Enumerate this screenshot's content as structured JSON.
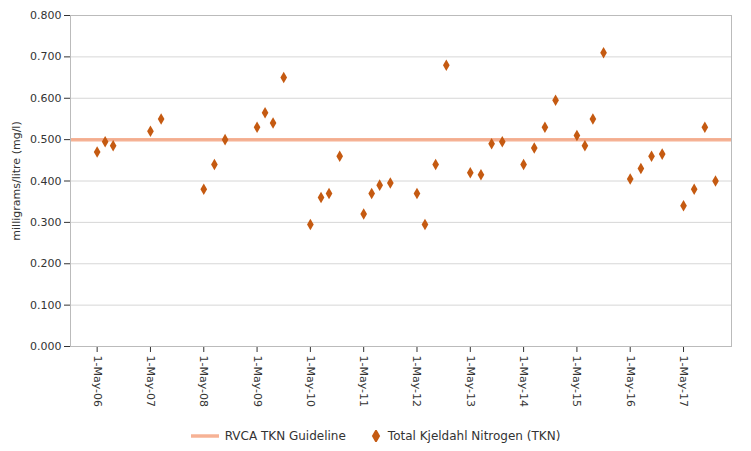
{
  "chart_data": {
    "type": "scatter",
    "ylabel": "milligrams/litre (mg/l)",
    "x": [
      2006.0,
      2006.15,
      2006.3,
      2007.0,
      2007.2,
      2008.0,
      2008.2,
      2008.4,
      2009.0,
      2009.15,
      2009.3,
      2009.5,
      2010.0,
      2010.2,
      2010.35,
      2010.55,
      2011.0,
      2011.15,
      2011.3,
      2011.5,
      2012.0,
      2012.15,
      2012.35,
      2012.55,
      2013.0,
      2013.2,
      2013.4,
      2013.6,
      2014.0,
      2014.2,
      2014.4,
      2014.6,
      2015.0,
      2015.15,
      2015.3,
      2015.5,
      2016.0,
      2016.2,
      2016.4,
      2016.6,
      2017.0,
      2017.2,
      2017.4,
      2017.6
    ],
    "guideline": {
      "name": "RVCA TKN Guideline",
      "value": 0.5,
      "color": "#F4A582"
    },
    "series": [
      {
        "name": "Total Kjeldahl Nitrogen (TKN)",
        "color": "#C55A11",
        "marker": "diamond",
        "values": [
          0.47,
          0.495,
          0.485,
          0.52,
          0.55,
          0.38,
          0.44,
          0.5,
          0.53,
          0.565,
          0.54,
          0.65,
          0.295,
          0.36,
          0.37,
          0.46,
          0.32,
          0.37,
          0.39,
          0.395,
          0.37,
          0.295,
          0.44,
          0.68,
          0.42,
          0.415,
          0.49,
          0.495,
          0.44,
          0.48,
          0.53,
          0.595,
          0.51,
          0.485,
          0.55,
          0.71,
          0.405,
          0.43,
          0.46,
          0.465,
          0.34,
          0.38,
          0.53,
          0.4
        ]
      }
    ],
    "xlim": [
      2005.5,
      2017.9
    ],
    "xticks": [
      {
        "value": 2006,
        "label": "1-May-06"
      },
      {
        "value": 2007,
        "label": "1-May-07"
      },
      {
        "value": 2008,
        "label": "1-May-08"
      },
      {
        "value": 2009,
        "label": "1-May-09"
      },
      {
        "value": 2010,
        "label": "1-May-10"
      },
      {
        "value": 2011,
        "label": "1-May-11"
      },
      {
        "value": 2012,
        "label": "1-May-12"
      },
      {
        "value": 2013,
        "label": "1-May-13"
      },
      {
        "value": 2014,
        "label": "1-May-14"
      },
      {
        "value": 2015,
        "label": "1-May-15"
      },
      {
        "value": 2016,
        "label": "1-May-16"
      },
      {
        "value": 2017,
        "label": "1-May-17"
      }
    ],
    "ylim": [
      0,
      0.8
    ],
    "yticks": [
      {
        "value": 0,
        "label": "0.000"
      },
      {
        "value": 0.1,
        "label": "0.100"
      },
      {
        "value": 0.2,
        "label": "0.200"
      },
      {
        "value": 0.3,
        "label": "0.300"
      },
      {
        "value": 0.4,
        "label": "0.400"
      },
      {
        "value": 0.5,
        "label": "0.500"
      },
      {
        "value": 0.6,
        "label": "0.600"
      },
      {
        "value": 0.7,
        "label": "0.700"
      },
      {
        "value": 0.8,
        "label": "0.800"
      }
    ],
    "grid": true,
    "legend": "bottom"
  }
}
